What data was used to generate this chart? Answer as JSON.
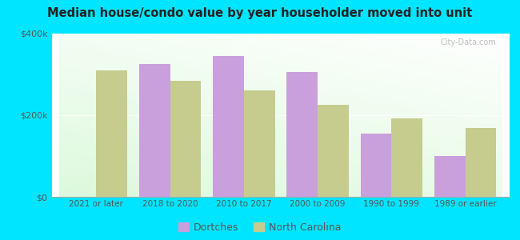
{
  "title": "Median house/condo value by year householder moved into unit",
  "categories": [
    "2021 or later",
    "2018 to 2020",
    "2010 to 2017",
    "2000 to 2009",
    "1990 to 1999",
    "1989 or earlier"
  ],
  "dortches": [
    null,
    325000,
    345000,
    305000,
    155000,
    100000
  ],
  "north_carolina": [
    310000,
    285000,
    260000,
    225000,
    192000,
    168000
  ],
  "dortches_color": "#c9a0dc",
  "nc_color": "#c5cc8e",
  "background_outer": "#00e5ff",
  "ylim": [
    0,
    400000
  ],
  "bar_width": 0.42,
  "legend_dortches": "Dortches",
  "legend_nc": "North Carolina",
  "watermark": "City-Data.com"
}
